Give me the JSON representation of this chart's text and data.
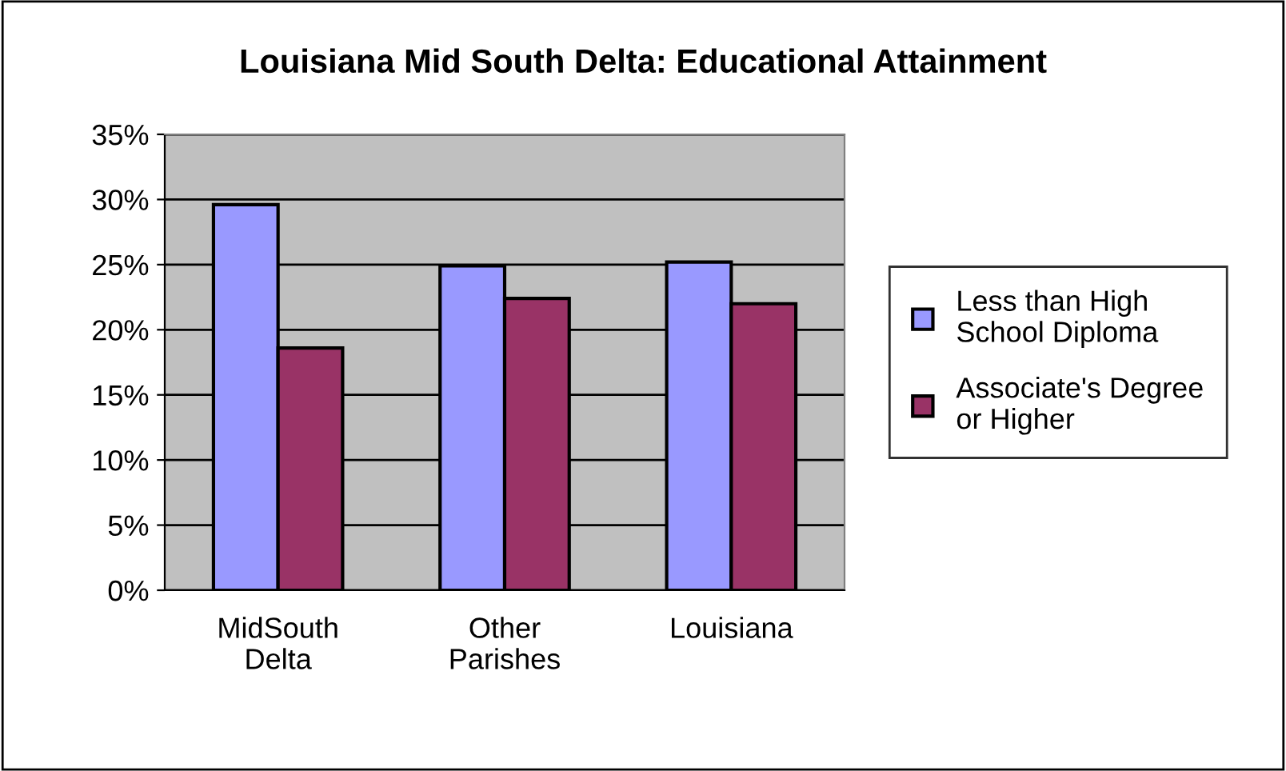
{
  "chart_data": {
    "type": "bar",
    "title": "Louisiana Mid South Delta: Educational Attainment",
    "categories": [
      "MidSouth\nDelta",
      "Other\nParishes",
      "Louisiana"
    ],
    "series": [
      {
        "name": "Less than High\nSchool Diploma",
        "color": "#9999ff",
        "values": [
          29.6,
          24.9,
          25.2
        ]
      },
      {
        "name": "Associate's Degree\nor Higher",
        "color": "#993366",
        "values": [
          18.6,
          22.4,
          22.0
        ]
      }
    ],
    "ylim": [
      0,
      35
    ],
    "yticks": [
      {
        "value": 0,
        "label": "0%"
      },
      {
        "value": 5,
        "label": "5%"
      },
      {
        "value": 10,
        "label": "10%"
      },
      {
        "value": 15,
        "label": "15%"
      },
      {
        "value": 20,
        "label": "20%"
      },
      {
        "value": 25,
        "label": "25%"
      },
      {
        "value": 30,
        "label": "30%"
      },
      {
        "value": 35,
        "label": "35%"
      }
    ],
    "grid": "y",
    "legend": "right"
  }
}
